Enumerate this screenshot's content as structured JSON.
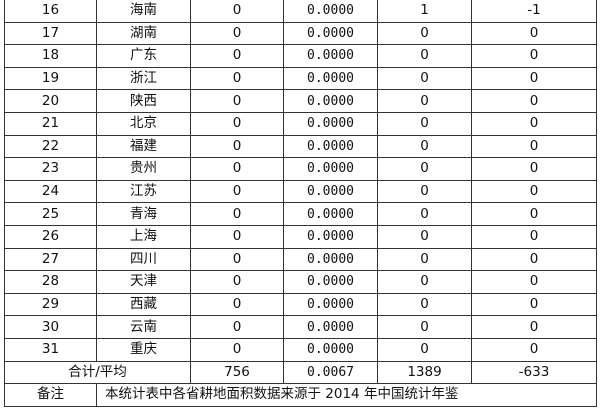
{
  "rows": [
    {
      "no": "16",
      "province": "海南",
      "c1": "0",
      "c2": "0.0000",
      "c3": "1",
      "c4": "-1"
    },
    {
      "no": "17",
      "province": "湖南",
      "c1": "0",
      "c2": "0.0000",
      "c3": "0",
      "c4": "0"
    },
    {
      "no": "18",
      "province": "广东",
      "c1": "0",
      "c2": "0.0000",
      "c3": "0",
      "c4": "0"
    },
    {
      "no": "19",
      "province": "浙江",
      "c1": "0",
      "c2": "0.0000",
      "c3": "0",
      "c4": "0"
    },
    {
      "no": "20",
      "province": "陕西",
      "c1": "0",
      "c2": "0.0000",
      "c3": "0",
      "c4": "0"
    },
    {
      "no": "21",
      "province": "北京",
      "c1": "0",
      "c2": "0.0000",
      "c3": "0",
      "c4": "0"
    },
    {
      "no": "22",
      "province": "福建",
      "c1": "0",
      "c2": "0.0000",
      "c3": "0",
      "c4": "0"
    },
    {
      "no": "23",
      "province": "贵州",
      "c1": "0",
      "c2": "0.0000",
      "c3": "0",
      "c4": "0"
    },
    {
      "no": "24",
      "province": "江苏",
      "c1": "0",
      "c2": "0.0000",
      "c3": "0",
      "c4": "0"
    },
    {
      "no": "25",
      "province": "青海",
      "c1": "0",
      "c2": "0.0000",
      "c3": "0",
      "c4": "0"
    },
    {
      "no": "26",
      "province": "上海",
      "c1": "0",
      "c2": "0.0000",
      "c3": "0",
      "c4": "0"
    },
    {
      "no": "27",
      "province": "四川",
      "c1": "0",
      "c2": "0.0000",
      "c3": "0",
      "c4": "0"
    },
    {
      "no": "28",
      "province": "天津",
      "c1": "0",
      "c2": "0.0000",
      "c3": "0",
      "c4": "0"
    },
    {
      "no": "29",
      "province": "西藏",
      "c1": "0",
      "c2": "0.0000",
      "c3": "0",
      "c4": "0"
    },
    {
      "no": "30",
      "province": "云南",
      "c1": "0",
      "c2": "0.0000",
      "c3": "0",
      "c4": "0"
    },
    {
      "no": "31",
      "province": "重庆",
      "c1": "0",
      "c2": "0.0000",
      "c3": "0",
      "c4": "0"
    }
  ],
  "total": {
    "label": "合计/平均",
    "c1": "756",
    "c2": "0.0067",
    "c3": "1389",
    "c4": "-633"
  },
  "note": {
    "label": "备注",
    "text": "本统计表中各省耕地面积数据来源于 2014 年中国统计年鉴"
  }
}
